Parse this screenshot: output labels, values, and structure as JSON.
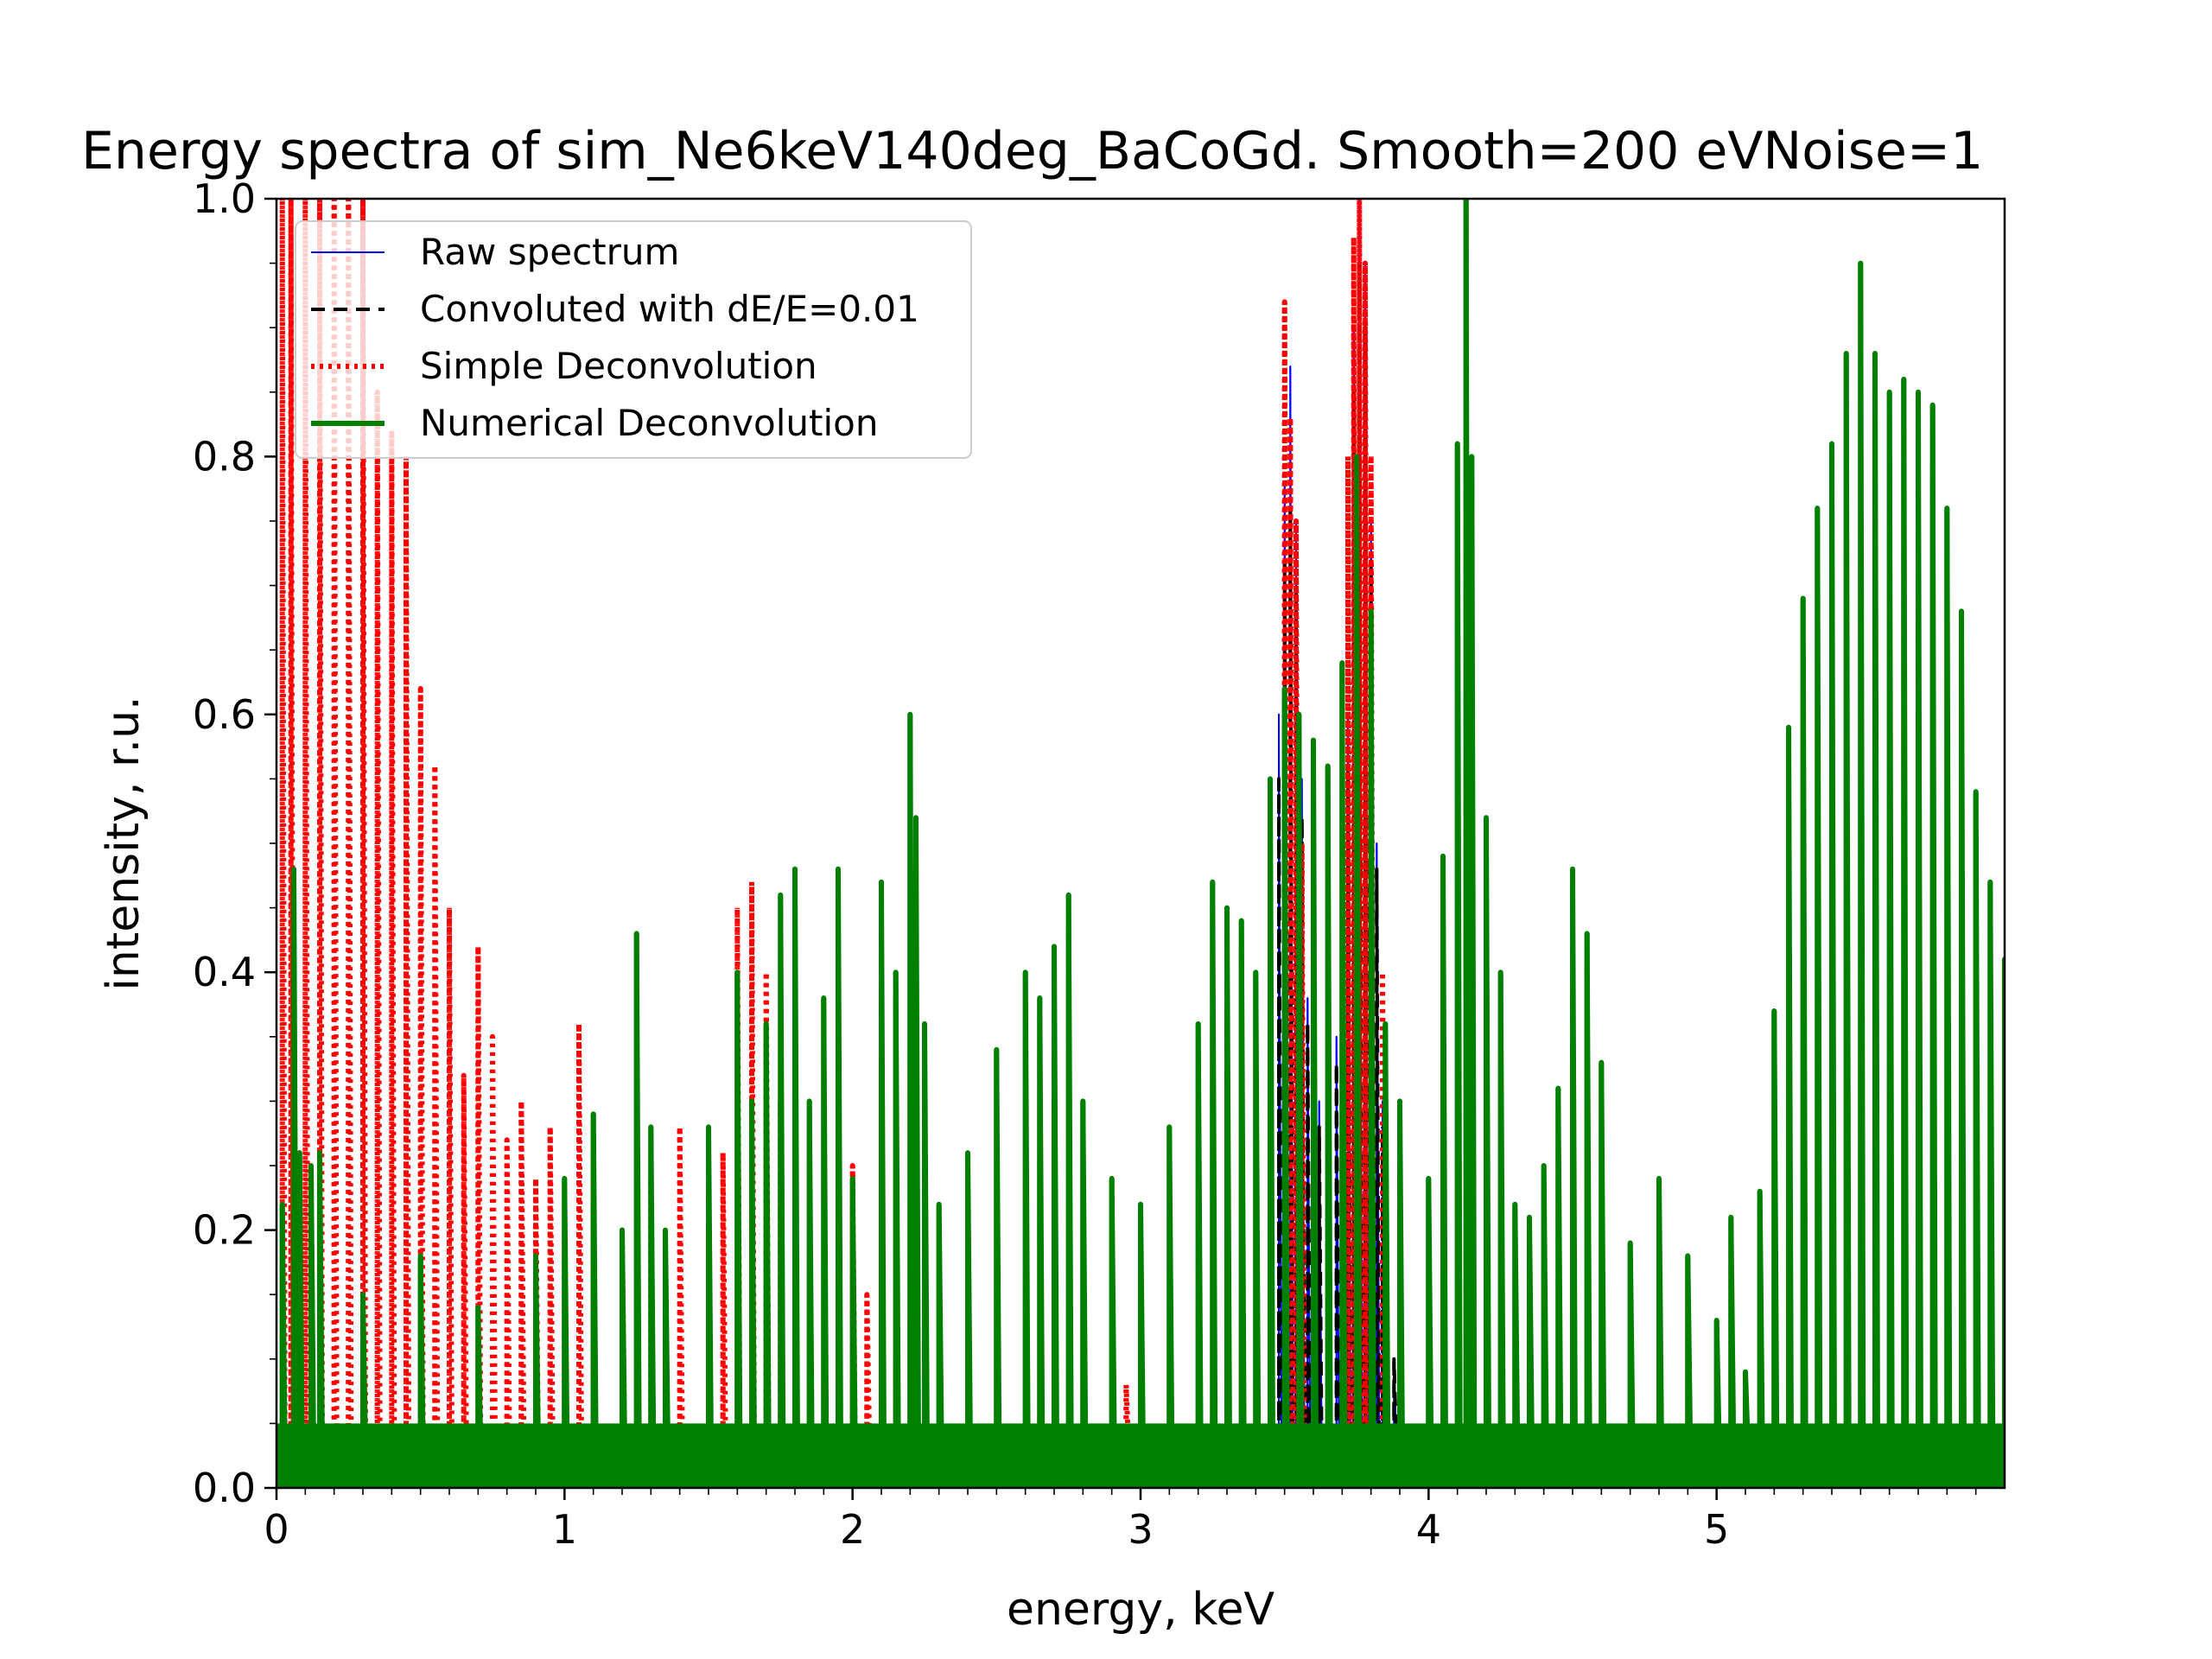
{
  "chart_data": {
    "type": "line",
    "title": "Energy spectra of sim_Ne6keV140deg_BaCoGd. Smooth=200 eVNoise=1",
    "xlabel": "energy, keV",
    "ylabel": "intensity, r.u.",
    "xlim": [
      0,
      6.0
    ],
    "ylim": [
      0,
      1.0
    ],
    "xticks": [
      "0",
      "1",
      "2",
      "3",
      "4",
      "5"
    ],
    "yticks": [
      "0.0",
      "0.2",
      "0.4",
      "0.6",
      "0.8",
      "1.0"
    ],
    "legend_position": "upper-left",
    "grid": false,
    "series": [
      {
        "name": "Raw spectrum",
        "color": "#0000ff",
        "style": "solid-thin",
        "x": [
          3.4,
          3.45,
          3.48,
          3.5,
          3.52,
          3.54,
          3.56,
          3.58,
          3.62,
          3.68,
          3.72,
          3.74,
          3.76,
          3.78,
          3.8,
          3.82,
          3.84,
          3.88
        ],
        "y": [
          0.2,
          0.4,
          0.6,
          0.78,
          0.87,
          0.75,
          0.55,
          0.38,
          0.3,
          0.35,
          0.6,
          0.9,
          1.0,
          0.95,
          0.75,
          0.5,
          0.3,
          0.1
        ]
      },
      {
        "name": "Convoluted with dE/E=0.01",
        "color": "#000000",
        "style": "dashed",
        "x": [
          3.4,
          3.45,
          3.48,
          3.5,
          3.52,
          3.54,
          3.56,
          3.58,
          3.62,
          3.68,
          3.72,
          3.74,
          3.76,
          3.78,
          3.8,
          3.82,
          3.84,
          3.88
        ],
        "y": [
          0.2,
          0.38,
          0.55,
          0.72,
          0.76,
          0.7,
          0.52,
          0.36,
          0.28,
          0.33,
          0.56,
          0.85,
          0.95,
          0.9,
          0.72,
          0.48,
          0.28,
          0.1
        ]
      },
      {
        "name": "Simple Deconvolution",
        "color": "#ff0000",
        "style": "dotted",
        "x": [
          0.02,
          0.05,
          0.1,
          0.15,
          0.2,
          0.25,
          0.3,
          0.35,
          0.4,
          0.45,
          0.5,
          0.55,
          0.6,
          0.65,
          0.7,
          0.75,
          0.8,
          0.85,
          0.9,
          0.95,
          1.0,
          1.05,
          1.1,
          1.2,
          1.3,
          1.4,
          1.5,
          1.55,
          1.6,
          1.65,
          1.7,
          1.75,
          1.8,
          2.0,
          2.05,
          2.1,
          2.15,
          2.2,
          2.95,
          3.45,
          3.5,
          3.52,
          3.54,
          3.56,
          3.72,
          3.74,
          3.76,
          3.78,
          3.8,
          3.84,
          5.1,
          5.2
        ],
        "y": [
          1.0,
          1.0,
          1.0,
          1.0,
          1.0,
          1.0,
          1.0,
          0.85,
          0.82,
          0.8,
          0.62,
          0.56,
          0.45,
          0.32,
          0.42,
          0.35,
          0.27,
          0.3,
          0.24,
          0.28,
          0.2,
          0.36,
          0.22,
          0.2,
          0.24,
          0.28,
          0.12,
          0.26,
          0.45,
          0.47,
          0.4,
          0.3,
          0.2,
          0.25,
          0.15,
          0.06,
          0.1,
          0.13,
          0.08,
          0.4,
          0.92,
          0.83,
          0.75,
          0.5,
          0.8,
          0.97,
          1.0,
          0.95,
          0.8,
          0.4,
          0.05,
          0.04
        ]
      },
      {
        "name": "Numerical Deconvolution",
        "color": "#008000",
        "style": "solid-thick",
        "x": [
          0.02,
          0.06,
          0.08,
          0.12,
          0.15,
          0.3,
          0.5,
          0.7,
          0.9,
          1.0,
          1.1,
          1.2,
          1.25,
          1.3,
          1.35,
          1.5,
          1.6,
          1.65,
          1.7,
          1.75,
          1.8,
          1.85,
          1.9,
          1.95,
          2.0,
          2.1,
          2.15,
          2.2,
          2.22,
          2.25,
          2.3,
          2.4,
          2.5,
          2.6,
          2.65,
          2.7,
          2.75,
          2.8,
          2.9,
          3.0,
          3.1,
          3.2,
          3.25,
          3.3,
          3.35,
          3.4,
          3.45,
          3.5,
          3.55,
          3.6,
          3.65,
          3.7,
          3.75,
          3.8,
          3.85,
          3.9,
          4.0,
          4.05,
          4.1,
          4.13,
          4.15,
          4.2,
          4.25,
          4.3,
          4.35,
          4.4,
          4.45,
          4.5,
          4.55,
          4.6,
          4.7,
          4.8,
          4.9,
          5.0,
          5.05,
          5.1,
          5.15,
          5.2,
          5.25,
          5.3,
          5.35,
          5.4,
          5.45,
          5.5,
          5.55,
          5.6,
          5.65,
          5.7,
          5.75,
          5.8,
          5.85,
          5.9,
          5.95,
          6.0
        ],
        "y": [
          0.22,
          0.48,
          0.26,
          0.25,
          0.26,
          0.15,
          0.18,
          0.14,
          0.18,
          0.24,
          0.29,
          0.2,
          0.43,
          0.28,
          0.2,
          0.28,
          0.4,
          0.3,
          0.36,
          0.46,
          0.48,
          0.3,
          0.38,
          0.48,
          0.24,
          0.47,
          0.4,
          0.6,
          0.52,
          0.36,
          0.22,
          0.26,
          0.34,
          0.4,
          0.38,
          0.42,
          0.46,
          0.3,
          0.24,
          0.22,
          0.28,
          0.36,
          0.47,
          0.45,
          0.44,
          0.4,
          0.55,
          0.62,
          0.6,
          0.58,
          0.56,
          0.64,
          0.8,
          0.68,
          0.36,
          0.3,
          0.24,
          0.49,
          0.81,
          1.0,
          0.8,
          0.52,
          0.4,
          0.22,
          0.21,
          0.25,
          0.31,
          0.48,
          0.43,
          0.33,
          0.19,
          0.24,
          0.18,
          0.13,
          0.21,
          0.09,
          0.23,
          0.37,
          0.59,
          0.69,
          0.76,
          0.81,
          0.88,
          0.95,
          0.88,
          0.85,
          0.86,
          0.85,
          0.84,
          0.76,
          0.68,
          0.54,
          0.47,
          0.41
        ]
      }
    ]
  }
}
